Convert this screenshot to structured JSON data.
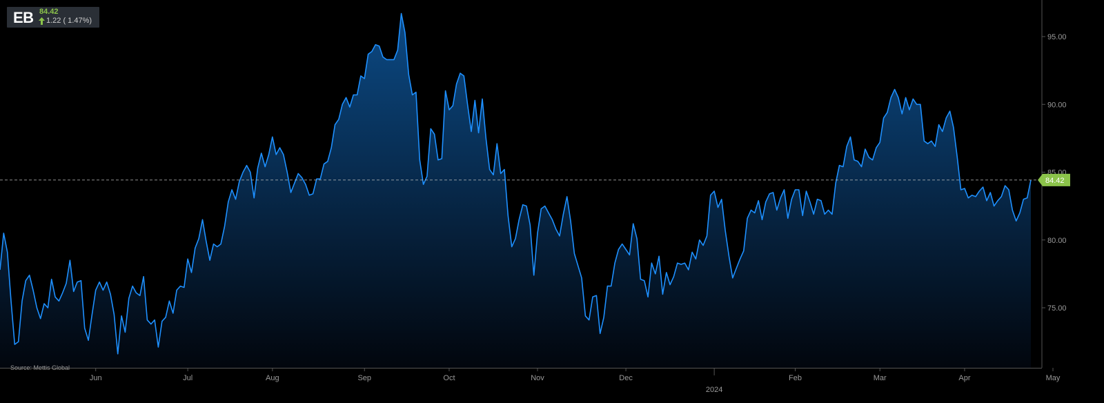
{
  "ticker": {
    "symbol": "EB",
    "price": "84.42",
    "change": "1.22 ( 1.47%)",
    "up_color": "#8bc34a",
    "arrow_icon": "arrow-up-icon"
  },
  "source": "Source: Mettis Global",
  "colors": {
    "line": "#1e90ff",
    "fill_top": "#0c4a85",
    "fill_bottom": "#02060d",
    "axis": "#555555",
    "tick_text": "#9a9a9a",
    "last_price_tag": "#8bc34a",
    "last_price_line": "#bfbfbf"
  },
  "chart_data": {
    "type": "area",
    "y_axis": {
      "position": "right",
      "ticks": [
        75,
        80,
        85,
        90,
        95
      ],
      "tick_labels": [
        "75.00",
        "80.00",
        "85.00",
        "90.00",
        "95.00"
      ],
      "ylim": [
        69.5,
        97.0
      ]
    },
    "x_axis": {
      "tick_labels": [
        "Jun",
        "Jul",
        "Aug",
        "Sep",
        "Oct",
        "Nov",
        "Dec",
        "Feb",
        "Mar",
        "Apr",
        "May"
      ],
      "tick_index": [
        26,
        51,
        74,
        99,
        122,
        146,
        170,
        216,
        239,
        262,
        286
      ],
      "year_label": "2024",
      "year_index": 194
    },
    "last_value": 84.42,
    "last_value_label": "84.42",
    "grid": false,
    "values": [
      77.8,
      80.5,
      79.1,
      75.5,
      72.3,
      72.5,
      75.5,
      77.0,
      77.4,
      76.3,
      75.0,
      74.2,
      75.3,
      75.0,
      77.1,
      75.8,
      75.5,
      76.1,
      76.8,
      78.5,
      76.2,
      76.9,
      77.0,
      73.5,
      72.6,
      74.5,
      76.3,
      76.9,
      76.3,
      76.9,
      76.0,
      74.5,
      71.6,
      74.4,
      73.2,
      75.7,
      76.6,
      76.1,
      75.9,
      77.3,
      74.1,
      73.8,
      74.1,
      72.1,
      74.0,
      74.3,
      75.5,
      74.6,
      76.3,
      76.6,
      76.5,
      78.6,
      77.6,
      79.4,
      80.1,
      81.5,
      79.9,
      78.5,
      79.7,
      79.5,
      79.7,
      81.0,
      82.8,
      83.7,
      83.0,
      84.3,
      85.0,
      85.5,
      85.0,
      83.1,
      85.3,
      86.4,
      85.4,
      86.3,
      87.6,
      86.3,
      86.8,
      86.3,
      85.0,
      83.5,
      84.2,
      84.9,
      84.6,
      84.1,
      83.3,
      83.4,
      84.5,
      84.5,
      85.6,
      85.8,
      86.8,
      88.5,
      88.9,
      90.0,
      90.5,
      89.8,
      90.7,
      90.7,
      92.1,
      91.9,
      93.7,
      93.9,
      94.4,
      94.3,
      93.5,
      93.3,
      93.3,
      93.3,
      94.0,
      96.7,
      95.3,
      92.2,
      90.7,
      90.9,
      85.9,
      84.1,
      84.7,
      88.2,
      87.8,
      85.9,
      86.0,
      91.0,
      89.6,
      89.9,
      91.5,
      92.3,
      92.1,
      90.0,
      88.0,
      90.3,
      87.9,
      90.4,
      87.5,
      85.2,
      84.8,
      87.1,
      84.9,
      85.2,
      81.8,
      79.5,
      80.1,
      81.5,
      82.6,
      82.5,
      81.1,
      77.4,
      80.5,
      82.3,
      82.5,
      82.0,
      81.5,
      80.8,
      80.3,
      81.9,
      83.2,
      81.4,
      79.0,
      78.1,
      77.2,
      74.4,
      74.1,
      75.8,
      75.9,
      73.1,
      74.3,
      76.6,
      76.6,
      78.3,
      79.3,
      79.7,
      79.3,
      78.9,
      81.2,
      80.1,
      77.1,
      77.0,
      75.8,
      78.3,
      77.5,
      78.8,
      76.0,
      77.6,
      76.7,
      77.3,
      78.3,
      78.2,
      78.3,
      77.8,
      79.1,
      78.6,
      80.0,
      79.6,
      80.3,
      83.3,
      83.6,
      82.4,
      83.0,
      80.7,
      78.8,
      77.2,
      77.9,
      78.6,
      79.2,
      81.6,
      82.2,
      82.0,
      82.9,
      81.5,
      82.8,
      83.4,
      83.5,
      82.2,
      83.1,
      83.7,
      81.6,
      83.0,
      83.7,
      83.7,
      81.8,
      83.6,
      82.8,
      81.9,
      83.0,
      82.9,
      81.9,
      82.2,
      81.9,
      84.2,
      85.5,
      85.4,
      86.9,
      87.6,
      85.9,
      85.8,
      85.4,
      86.7,
      86.1,
      85.9,
      86.8,
      87.2,
      89.0,
      89.4,
      90.5,
      91.1,
      90.5,
      89.3,
      90.5,
      89.6,
      90.4,
      90.0,
      90.0,
      87.3,
      87.1,
      87.3,
      86.9,
      88.5,
      88.0,
      89.0,
      89.5,
      88.3,
      86.1,
      83.7,
      83.8,
      83.1,
      83.3,
      83.2,
      83.6,
      83.9,
      82.9,
      83.5,
      82.5,
      82.9,
      83.2,
      84.0,
      83.7,
      82.2,
      81.4,
      82.0,
      83.0,
      83.1,
      84.42
    ]
  }
}
